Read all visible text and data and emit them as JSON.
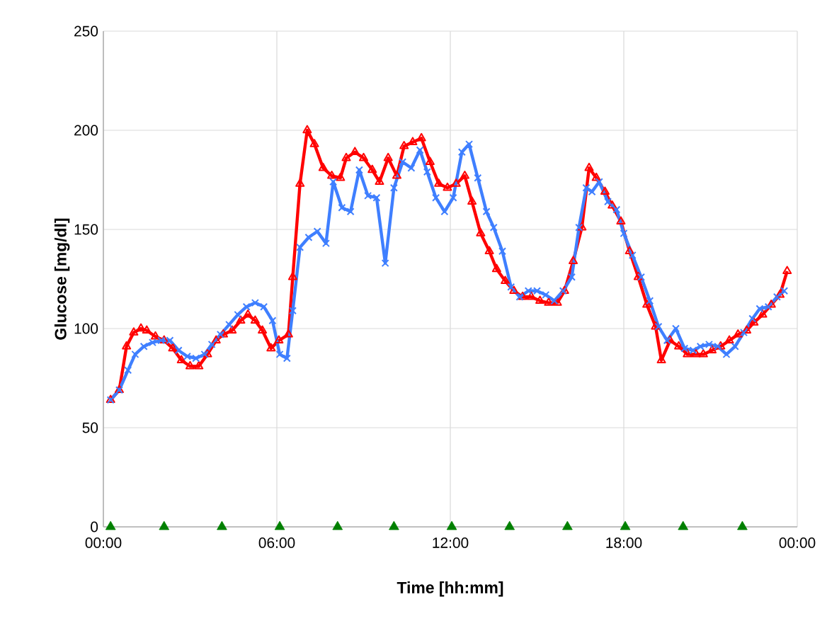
{
  "chart_data": {
    "type": "line",
    "xlabel": "Time [hh:mm]",
    "ylabel": "Glucose [mg/dl]",
    "xlim": [
      0,
      24
    ],
    "xticks": [
      {
        "value": 0,
        "label": "00:00"
      },
      {
        "value": 6,
        "label": "06:00"
      },
      {
        "value": 12,
        "label": "12:00"
      },
      {
        "value": 18,
        "label": "18:00"
      },
      {
        "value": 24,
        "label": "00:00"
      }
    ],
    "ylim": [
      0,
      250
    ],
    "yticks": [
      0,
      50,
      100,
      150,
      200,
      250
    ],
    "grid": true,
    "line_style": "solid",
    "series": [
      {
        "color": "#ff0000",
        "marker": "triangle",
        "x": [
          0.25,
          0.55,
          0.8,
          1.05,
          1.3,
          1.5,
          1.8,
          2.1,
          2.4,
          2.7,
          3.0,
          3.3,
          3.6,
          3.9,
          4.15,
          4.45,
          4.75,
          5.0,
          5.25,
          5.5,
          5.8,
          6.07,
          6.4,
          6.55,
          6.8,
          7.05,
          7.3,
          7.6,
          7.9,
          8.2,
          8.4,
          8.7,
          9.0,
          9.3,
          9.55,
          9.85,
          10.15,
          10.4,
          10.7,
          11.0,
          11.3,
          11.6,
          11.9,
          12.2,
          12.5,
          12.75,
          13.05,
          13.35,
          13.6,
          13.9,
          14.2,
          14.5,
          14.8,
          15.1,
          15.4,
          15.7,
          15.95,
          16.25,
          16.55,
          16.8,
          17.05,
          17.35,
          17.6,
          17.9,
          18.2,
          18.5,
          18.8,
          19.1,
          19.3,
          19.6,
          19.9,
          20.2,
          20.5,
          20.75,
          21.05,
          21.35,
          21.65,
          21.95,
          22.25,
          22.5,
          22.8,
          23.1,
          23.4,
          23.65
        ],
        "values": [
          64,
          69,
          91,
          98,
          100,
          99,
          96,
          94,
          90,
          84,
          81,
          81,
          87,
          94,
          97,
          99,
          104,
          107,
          104,
          99,
          90,
          94,
          97,
          126,
          173,
          200,
          193,
          181,
          177,
          176,
          186,
          189,
          186,
          180,
          174,
          186,
          177,
          192,
          194,
          196,
          184,
          173,
          171,
          173,
          177,
          164,
          148,
          139,
          130,
          124,
          119,
          116,
          116,
          114,
          113,
          113,
          119,
          134,
          151,
          181,
          176,
          169,
          162,
          154,
          139,
          126,
          112,
          101,
          84,
          94,
          91,
          87,
          87,
          87,
          89,
          91,
          94,
          97,
          99,
          103,
          107,
          112,
          117,
          129
        ]
      },
      {
        "color": "#3f7fff",
        "marker": "cross",
        "x": [
          0.25,
          0.55,
          0.85,
          1.1,
          1.4,
          1.7,
          2.0,
          2.3,
          2.6,
          2.9,
          3.2,
          3.5,
          3.75,
          4.05,
          4.35,
          4.65,
          4.95,
          5.25,
          5.55,
          5.85,
          6.1,
          6.35,
          6.55,
          6.8,
          7.1,
          7.4,
          7.7,
          7.95,
          8.25,
          8.55,
          8.85,
          9.15,
          9.45,
          9.75,
          10.05,
          10.35,
          10.65,
          10.95,
          11.2,
          11.5,
          11.8,
          12.1,
          12.4,
          12.65,
          12.95,
          13.25,
          13.5,
          13.8,
          14.1,
          14.4,
          14.7,
          15.0,
          15.3,
          15.6,
          15.9,
          16.2,
          16.45,
          16.7,
          16.9,
          17.15,
          17.45,
          17.75,
          18.0,
          18.3,
          18.6,
          18.9,
          19.2,
          19.5,
          19.8,
          20.1,
          20.4,
          20.65,
          20.95,
          21.25,
          21.55,
          21.85,
          22.15,
          22.45,
          22.7,
          23.0,
          23.3,
          23.55
        ],
        "values": [
          64,
          69,
          79,
          87,
          91,
          93,
          94,
          94,
          89,
          86,
          85,
          87,
          92,
          97,
          102,
          107,
          111,
          113,
          111,
          104,
          87,
          85,
          109,
          141,
          146,
          149,
          143,
          174,
          161,
          159,
          180,
          167,
          166,
          133,
          171,
          184,
          181,
          190,
          179,
          166,
          159,
          166,
          189,
          193,
          176,
          159,
          151,
          139,
          121,
          116,
          119,
          119,
          117,
          114,
          119,
          126,
          151,
          171,
          169,
          174,
          164,
          160,
          148,
          137,
          126,
          114,
          101,
          94,
          100,
          90,
          89,
          91,
          92,
          91,
          87,
          91,
          98,
          105,
          110,
          111,
          116,
          119
        ]
      },
      {
        "type": "scatter",
        "color": "#008000",
        "marker": "triangle",
        "x": [
          0.25,
          2.1,
          4.1,
          6.1,
          8.1,
          10.05,
          12.05,
          14.05,
          16.05,
          18.05,
          20.05,
          22.1
        ],
        "values": [
          0,
          0,
          0,
          0,
          0,
          0,
          0,
          0,
          0,
          0,
          0,
          0
        ]
      }
    ]
  }
}
